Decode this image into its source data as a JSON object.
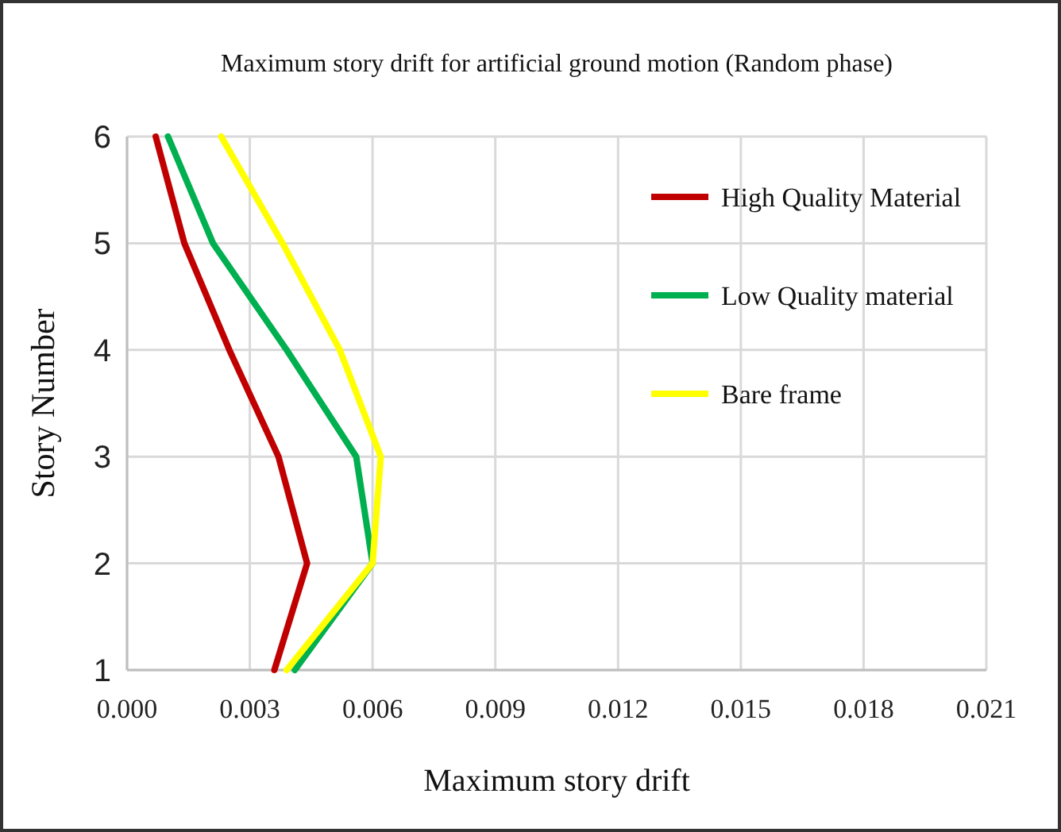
{
  "chart_data": {
    "type": "line",
    "title": "Maximum  story drift for artificial  ground motion (Random phase)",
    "xlabel": "Maximum  story drift",
    "ylabel": "Story Number",
    "series": [
      {
        "name": "High Quality Material",
        "color": "#c00000",
        "x": [
          0.0036,
          0.0044,
          0.0037,
          0.0025,
          0.0014,
          0.0007
        ],
        "values": [
          1,
          2,
          3,
          4,
          5,
          6
        ]
      },
      {
        "name": "Low Quality material",
        "color": "#00b050",
        "x": [
          0.0041,
          0.006,
          0.0056,
          0.0039,
          0.0021,
          0.001
        ],
        "values": [
          1,
          2,
          3,
          4,
          5,
          6
        ]
      },
      {
        "name": "Bare frame",
        "color": "#ffff00",
        "x": [
          0.0039,
          0.006,
          0.0062,
          0.0052,
          0.0038,
          0.0023
        ],
        "values": [
          1,
          2,
          3,
          4,
          5,
          6
        ]
      }
    ],
    "xlim": [
      0,
      0.021
    ],
    "xticks": [
      {
        "value": 0,
        "label": "0.000"
      },
      {
        "value": 0.003,
        "label": "0.003"
      },
      {
        "value": 0.006,
        "label": "0.006"
      },
      {
        "value": 0.009,
        "label": "0.009"
      },
      {
        "value": 0.012,
        "label": "0.012"
      },
      {
        "value": 0.015,
        "label": "0.015"
      },
      {
        "value": 0.018,
        "label": "0.018"
      },
      {
        "value": 0.021,
        "label": "0.021"
      }
    ],
    "ylim": [
      1,
      6
    ],
    "yticks": [
      1,
      2,
      3,
      4,
      5,
      6
    ],
    "grid": true,
    "legend": "top right",
    "line_style": "solid",
    "marker": "none"
  }
}
